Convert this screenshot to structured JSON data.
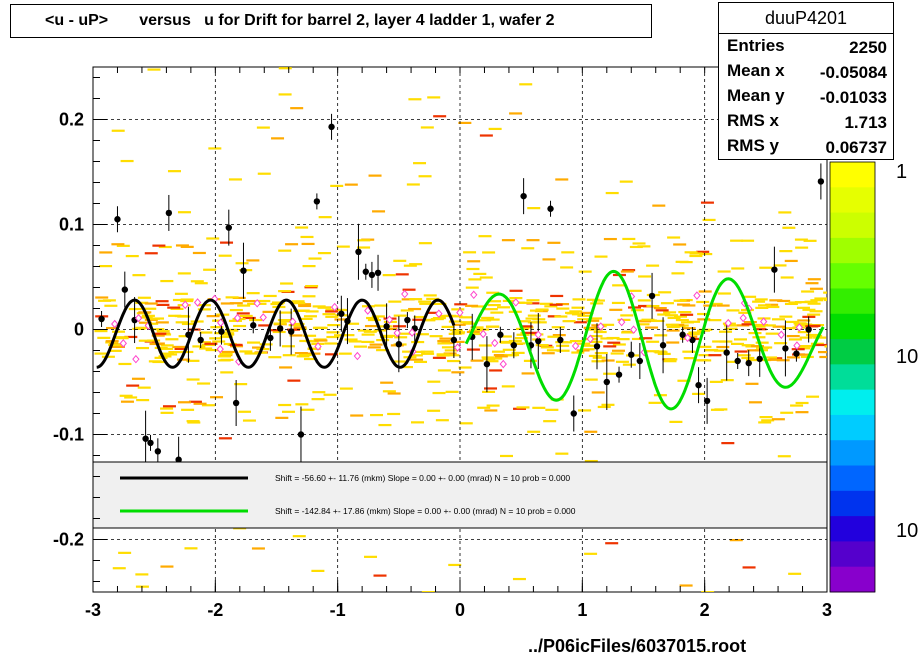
{
  "chart_data": {
    "type": "scatter",
    "title": "<u - uP>       versus   u for Drift for barrel 2, layer 4 ladder 1, wafer 2",
    "xlabel": "",
    "ylabel": "",
    "xlim": [
      -3,
      3
    ],
    "ylim": [
      -0.25,
      0.25
    ],
    "x_ticks": [
      "-3",
      "-2",
      "-1",
      "0",
      "1",
      "2",
      "3"
    ],
    "y_ticks": [
      "0.2",
      "0.1",
      "0",
      "-0.1",
      "-0.2"
    ],
    "grid": true,
    "colorbar_labels": [
      "1",
      "10",
      "10"
    ],
    "colorbar_palette": [
      "#ffff00",
      "#e6ff00",
      "#ccff00",
      "#a0ff00",
      "#66ff00",
      "#33ee00",
      "#00dd00",
      "#00cc44",
      "#00dd99",
      "#00eeee",
      "#00ccff",
      "#0099ff",
      "#0066ff",
      "#0033ee",
      "#2200dd",
      "#5500cc",
      "#8800cc"
    ],
    "profile_points": [
      {
        "x": -2.93,
        "y": 0.01
      },
      {
        "x": -2.8,
        "y": 0.105
      },
      {
        "x": -2.74,
        "y": 0.038
      },
      {
        "x": -2.66,
        "y": 0.009
      },
      {
        "x": -2.57,
        "y": -0.104
      },
      {
        "x": -2.53,
        "y": -0.108
      },
      {
        "x": -2.47,
        "y": -0.116
      },
      {
        "x": -2.38,
        "y": 0.111
      },
      {
        "x": -2.3,
        "y": -0.124
      },
      {
        "x": -2.22,
        "y": -0.005
      },
      {
        "x": -2.12,
        "y": -0.01
      },
      {
        "x": -1.95,
        "y": -0.002
      },
      {
        "x": -1.89,
        "y": 0.097
      },
      {
        "x": -1.83,
        "y": -0.07
      },
      {
        "x": -1.77,
        "y": 0.056
      },
      {
        "x": -1.69,
        "y": 0.004
      },
      {
        "x": -1.55,
        "y": -0.008
      },
      {
        "x": -1.47,
        "y": 0.001
      },
      {
        "x": -1.38,
        "y": -0.002
      },
      {
        "x": -1.3,
        "y": -0.1
      },
      {
        "x": -1.17,
        "y": 0.122
      },
      {
        "x": -1.05,
        "y": 0.193
      },
      {
        "x": -0.97,
        "y": 0.015
      },
      {
        "x": -0.92,
        "y": 0.008
      },
      {
        "x": -0.83,
        "y": 0.074
      },
      {
        "x": -0.77,
        "y": 0.055
      },
      {
        "x": -0.72,
        "y": 0.052
      },
      {
        "x": -0.67,
        "y": 0.054
      },
      {
        "x": -0.6,
        "y": 0.003
      },
      {
        "x": -0.5,
        "y": -0.014
      },
      {
        "x": -0.43,
        "y": 0.009
      },
      {
        "x": -0.37,
        "y": 0.001
      },
      {
        "x": -0.05,
        "y": -0.01
      },
      {
        "x": 0.1,
        "y": -0.007
      },
      {
        "x": 0.22,
        "y": -0.033
      },
      {
        "x": 0.33,
        "y": -0.005
      },
      {
        "x": 0.44,
        "y": -0.015
      },
      {
        "x": 0.52,
        "y": 0.127
      },
      {
        "x": 0.58,
        "y": -0.015
      },
      {
        "x": 0.64,
        "y": -0.011
      },
      {
        "x": 0.74,
        "y": 0.115
      },
      {
        "x": 0.82,
        "y": -0.01
      },
      {
        "x": 0.93,
        "y": -0.08
      },
      {
        "x": 1.12,
        "y": -0.016
      },
      {
        "x": 1.2,
        "y": -0.05
      },
      {
        "x": 1.3,
        "y": -0.043
      },
      {
        "x": 1.4,
        "y": -0.024
      },
      {
        "x": 1.47,
        "y": -0.03
      },
      {
        "x": 1.57,
        "y": 0.032
      },
      {
        "x": 1.66,
        "y": -0.015
      },
      {
        "x": 1.82,
        "y": -0.005
      },
      {
        "x": 1.9,
        "y": -0.01
      },
      {
        "x": 1.95,
        "y": -0.053
      },
      {
        "x": 2.02,
        "y": -0.068
      },
      {
        "x": 2.18,
        "y": -0.022
      },
      {
        "x": 2.27,
        "y": -0.03
      },
      {
        "x": 2.36,
        "y": -0.032
      },
      {
        "x": 2.45,
        "y": -0.028
      },
      {
        "x": 2.57,
        "y": 0.057
      },
      {
        "x": 2.66,
        "y": -0.018
      },
      {
        "x": 2.75,
        "y": -0.023
      },
      {
        "x": 2.85,
        "y": 0.0
      },
      {
        "x": 2.95,
        "y": 0.141
      }
    ],
    "series": [
      {
        "x_range": [
          -2.97,
          -0.05
        ],
        "offset": -0.004,
        "amplitude": 0.032,
        "period": 0.62
      },
      {
        "x_range": [
          0.05,
          2.97
        ],
        "offset": -0.01,
        "amplitude_start": 0.035,
        "amplitude_end": 0.07,
        "period": 0.95
      }
    ],
    "legend": {
      "placement": "lower-middle",
      "entries": [
        {
          "color": "#000000",
          "text": "Shift =   -56.60 +- 11.76 (mkm) Slope =     0.00 +- 0.00 (mrad)  N = 10 prob = 0.000"
        },
        {
          "color": "#00dd00",
          "text": "Shift =   -142.84 +- 17.86 (mkm) Slope =     0.00 +- 0.00 (mrad)  N = 10 prob = 0.000"
        }
      ]
    }
  },
  "stats": {
    "name": "duuP4201",
    "rows": [
      {
        "label": "Entries",
        "value": "2250"
      },
      {
        "label": "Mean x",
        "value": "-0.05084"
      },
      {
        "label": "Mean y",
        "value": "-0.01033"
      },
      {
        "label": "RMS x",
        "value": "1.713"
      },
      {
        "label": "RMS y",
        "value": "0.06737"
      }
    ]
  },
  "footer": "../P06icFiles/6037015.root"
}
